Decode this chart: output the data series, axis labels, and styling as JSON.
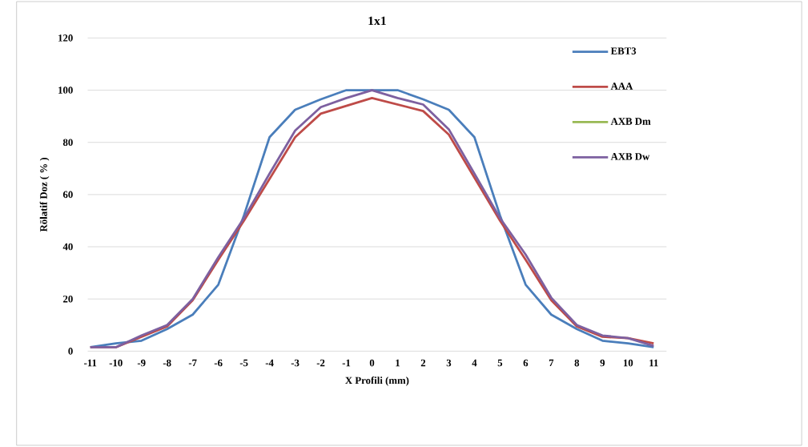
{
  "chart_data": {
    "type": "line",
    "title": "1x1",
    "xlabel": "X Profili (mm)",
    "ylabel": "Rölatif Doz ( % )",
    "categories": [
      "-11",
      "-10",
      "-9",
      "-8",
      "-7",
      "-6",
      "-5",
      "-4",
      "-3",
      "-2",
      "-1",
      "0",
      "1",
      "2",
      "3",
      "4",
      "5",
      "6",
      "7",
      "8",
      "9",
      "10",
      "11"
    ],
    "series": [
      {
        "name": "EBT3",
        "color": "#4a7ebb",
        "values": [
          1.5,
          3,
          4,
          8.5,
          14,
          25.5,
          52,
          82,
          92.5,
          96.5,
          100,
          100,
          100,
          96.5,
          92.5,
          82,
          52,
          25.5,
          14,
          8.5,
          4,
          3,
          1.5
        ]
      },
      {
        "name": "AAA",
        "color": "#be4b48",
        "values": [
          1.5,
          1.5,
          5.5,
          9.5,
          19.5,
          35,
          50,
          66,
          82,
          91,
          94,
          97,
          94.5,
          92,
          83,
          66.5,
          50,
          35,
          19.5,
          9.5,
          5.5,
          5,
          3
        ]
      },
      {
        "name": "AXB Dm",
        "color": "#98b954",
        "values": [
          null,
          null,
          null,
          null,
          null,
          null,
          null,
          null,
          null,
          null,
          null,
          null,
          null,
          null,
          null,
          null,
          null,
          null,
          null,
          null,
          null,
          null,
          null
        ]
      },
      {
        "name": "AXB Dw",
        "color": "#7d60a0",
        "values": [
          1.5,
          1.5,
          6,
          10,
          20,
          36,
          51,
          68,
          84.5,
          93.5,
          97,
          100,
          97,
          94.5,
          85,
          68,
          51,
          37,
          20.5,
          10,
          6,
          5,
          2
        ]
      }
    ],
    "ylim": [
      0,
      120
    ],
    "yticks": [
      0,
      20,
      40,
      60,
      80,
      100,
      120
    ],
    "grid": "y",
    "legend": "right",
    "line_style": "solid"
  }
}
